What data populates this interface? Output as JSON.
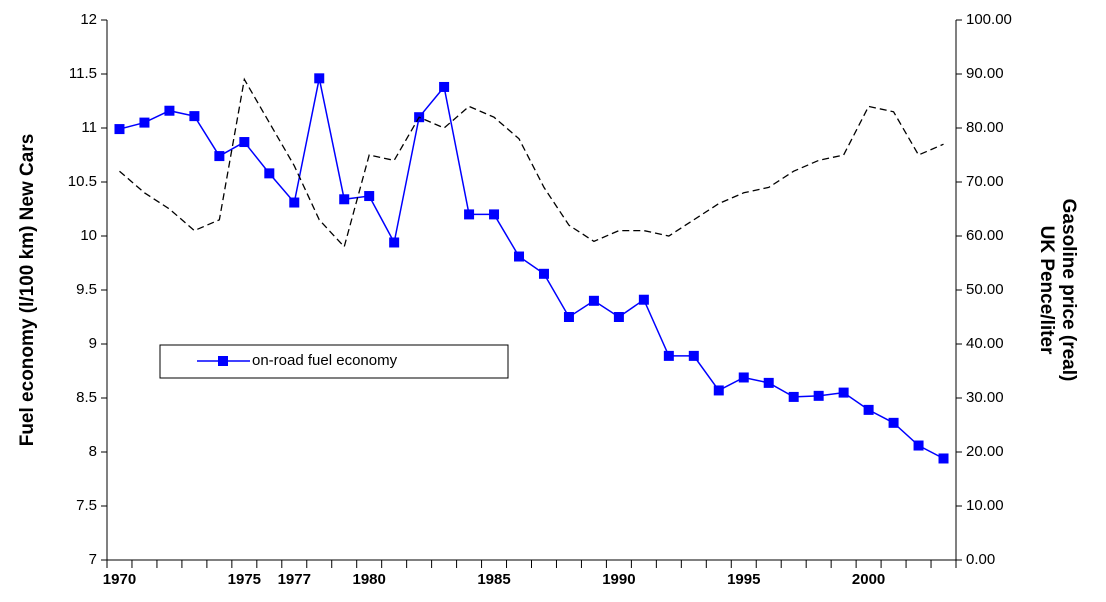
{
  "chart_data": {
    "type": "line",
    "ylabel": "Fuel economy (l/100 km) New Cars",
    "y2label": [
      "Gasoline price (real)",
      "UK Pence/liter"
    ],
    "categories": [
      "1970",
      null,
      null,
      null,
      null,
      "1975",
      null,
      "1977",
      null,
      null,
      "1980",
      null,
      null,
      null,
      null,
      "1985",
      null,
      null,
      null,
      null,
      "1990",
      null,
      null,
      null,
      null,
      "1995",
      null,
      null,
      null,
      null,
      "2000",
      null,
      null,
      null
    ],
    "series": [
      {
        "name": "on-road fuel economy",
        "color": "#0000ff",
        "marker": "square",
        "values": [
          10.99,
          11.05,
          11.16,
          11.11,
          10.74,
          10.87,
          10.58,
          10.31,
          11.46,
          10.34,
          10.37,
          9.94,
          11.1,
          11.38,
          10.2,
          10.2,
          9.81,
          9.65,
          9.25,
          9.4,
          9.25,
          9.41,
          8.89,
          8.89,
          8.57,
          8.69,
          8.64,
          8.51,
          8.52,
          8.55,
          8.39,
          8.27,
          8.06,
          7.94
        ]
      },
      {
        "color": "#000000",
        "dashed": true,
        "axis": "y2",
        "values": [
          72,
          68,
          65,
          61,
          63,
          89,
          81,
          73,
          63,
          58,
          75,
          74,
          82,
          80,
          84,
          82,
          78,
          69,
          62,
          59,
          61,
          61,
          60,
          63,
          66,
          68,
          69,
          72,
          74,
          75,
          84,
          83,
          75,
          77
        ]
      }
    ],
    "ylim": [
      7,
      12
    ],
    "yticks": [
      7,
      7.5,
      8,
      8.5,
      9,
      9.5,
      10,
      10.5,
      11,
      11.5,
      12
    ],
    "y2lim": [
      0,
      100
    ],
    "y2ticks": [
      {
        "value": 0,
        "label": "0.00"
      },
      {
        "value": 10,
        "label": "10.00"
      },
      {
        "value": 20,
        "label": "20.00"
      },
      {
        "value": 30,
        "label": "30.00"
      },
      {
        "value": 40,
        "label": "40.00"
      },
      {
        "value": 50,
        "label": "50.00"
      },
      {
        "value": 60,
        "label": "60.00"
      },
      {
        "value": 70,
        "label": "70.00"
      },
      {
        "value": 80,
        "label": "80.00"
      },
      {
        "value": 90,
        "label": "90.00"
      },
      {
        "value": 100,
        "label": "100.00"
      }
    ],
    "grid": false,
    "legend": "center-left"
  }
}
